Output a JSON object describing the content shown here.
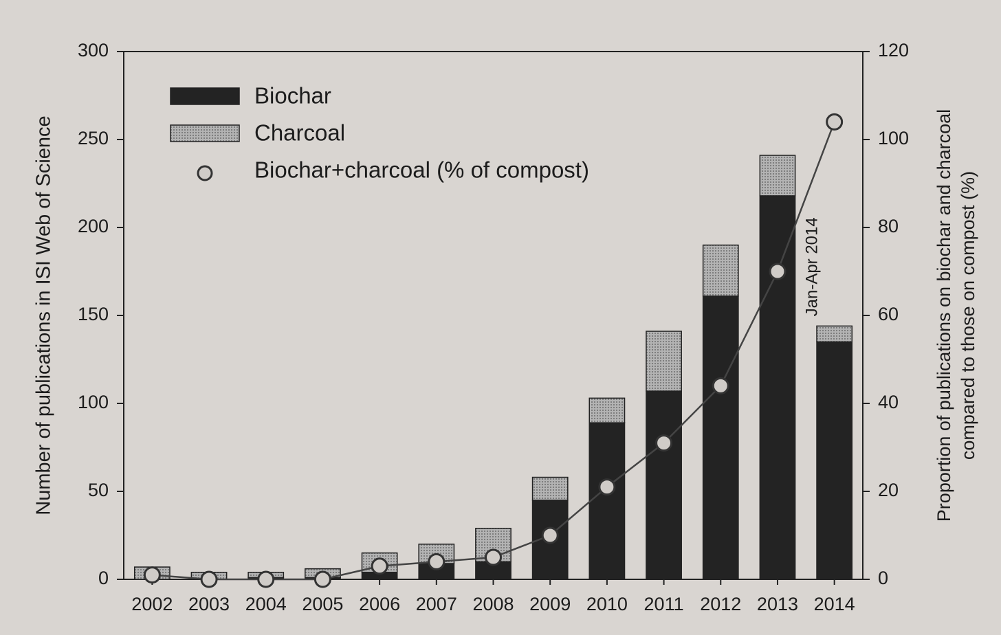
{
  "chart_data": {
    "type": "bar",
    "ylabel": "Number of publications in ISI Web of Science",
    "y2label": [
      "Proportion of publications on biochar and charcoal",
      "compared to those on compost (%)"
    ],
    "annotation": "Jan-Apr 2014",
    "categories": [
      "2002",
      "2003",
      "2004",
      "2005",
      "2006",
      "2007",
      "2008",
      "2009",
      "2010",
      "2011",
      "2012",
      "2013",
      "2014"
    ],
    "series": [
      {
        "name": "Biochar",
        "color": "#232323",
        "values": [
          0,
          0,
          1,
          1,
          4,
          9,
          10,
          45,
          89,
          107,
          161,
          218,
          135
        ]
      },
      {
        "name": "Charcoal",
        "color": "#a9a9a9",
        "values": [
          7,
          4,
          3,
          5,
          11,
          11,
          19,
          13,
          14,
          34,
          29,
          23,
          9
        ]
      },
      {
        "name": "Biochar+charcoal (% of compost)",
        "axis": "y2",
        "color": "#444444",
        "values": [
          1,
          0,
          0,
          0,
          3,
          4,
          5,
          10,
          21,
          31,
          44,
          70,
          104
        ]
      }
    ],
    "stacked": true,
    "ylim": [
      0,
      300
    ],
    "yticks": [
      0,
      50,
      100,
      150,
      200,
      250,
      300
    ],
    "y2lim": [
      0,
      120
    ],
    "y2ticks": [
      0,
      20,
      40,
      60,
      80,
      100,
      120
    ],
    "legend": "upper left"
  }
}
